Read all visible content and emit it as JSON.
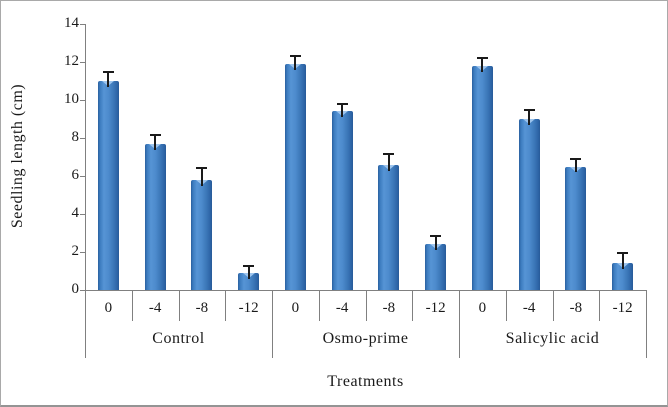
{
  "chart_data": {
    "type": "bar",
    "title": "",
    "ylabel": "Seedling length (cm)",
    "xlabel": "Treatments",
    "ylim": [
      0,
      14
    ],
    "yticks": [
      0,
      2,
      4,
      6,
      8,
      10,
      12,
      14
    ],
    "grid": false,
    "legend": null,
    "categories_per_group": [
      "0",
      "-4",
      "-8",
      "-12"
    ],
    "groups": [
      {
        "label": "Control",
        "categories": [
          "0",
          "-4",
          "-8",
          "-12"
        ],
        "values": [
          11.0,
          7.7,
          5.8,
          0.9
        ],
        "errors": [
          0.5,
          0.45,
          0.6,
          0.35
        ]
      },
      {
        "label": "Osmo-prime",
        "categories": [
          "0",
          "-4",
          "-8",
          "-12"
        ],
        "values": [
          11.9,
          9.4,
          6.6,
          2.4
        ],
        "errors": [
          0.4,
          0.4,
          0.55,
          0.45
        ]
      },
      {
        "label": "Salicylic acid",
        "categories": [
          "0",
          "-4",
          "-8",
          "-12"
        ],
        "values": [
          11.8,
          9.0,
          6.5,
          1.4
        ],
        "errors": [
          0.4,
          0.45,
          0.4,
          0.55
        ]
      }
    ],
    "colors": {
      "bar_edge": "#2a5f9f",
      "bar_mid": "#5694d5",
      "bar_highlight": "#9ec5ee",
      "error_bar": "#1a1a1a",
      "axis": "#808080",
      "text": "#1a1a1a",
      "background": "#ffffff",
      "frame_border": "#a9a9a9"
    }
  }
}
